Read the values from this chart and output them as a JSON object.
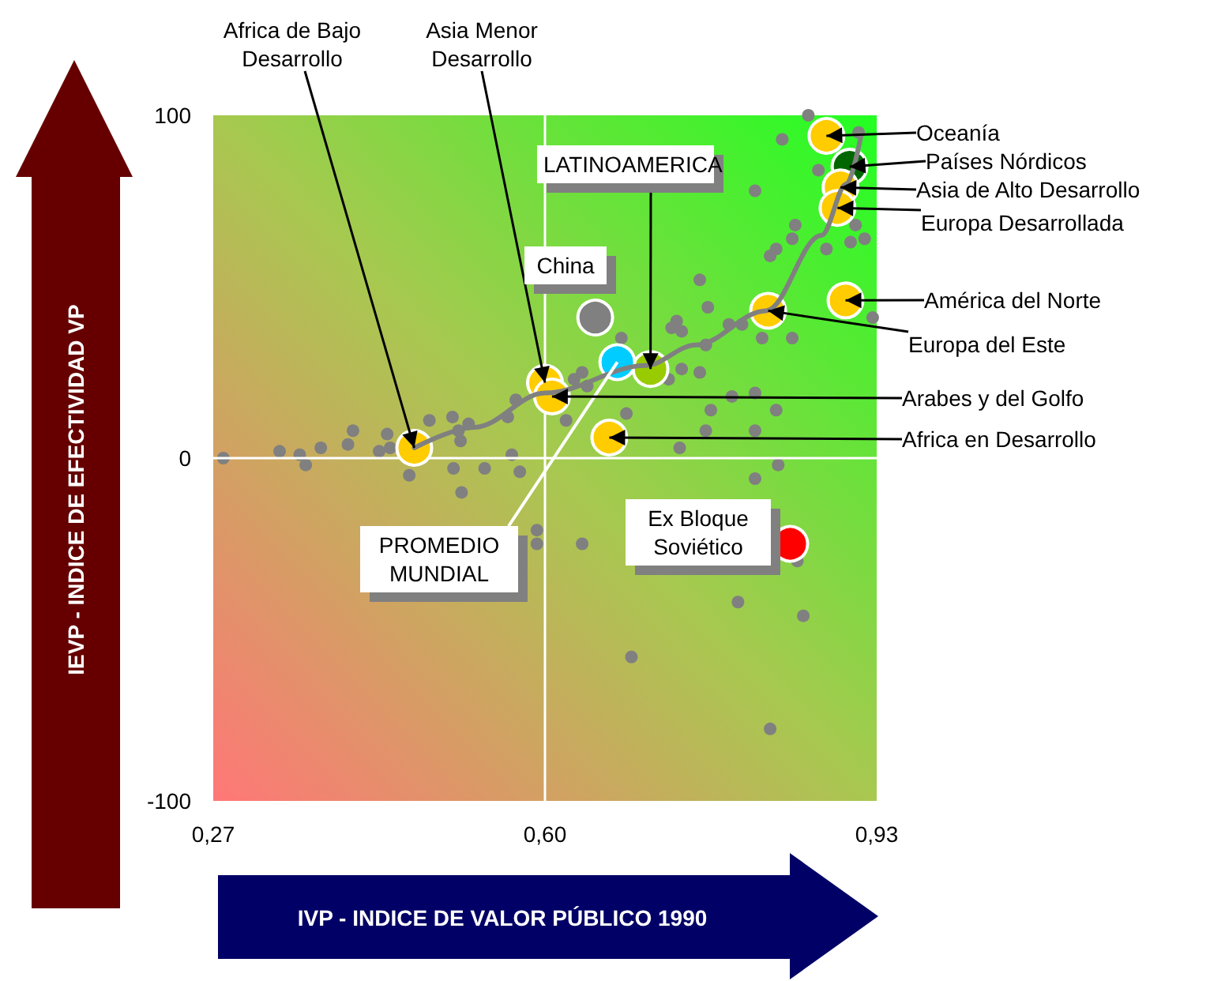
{
  "chart_data": {
    "type": "scatter",
    "xlabel": "IVP - INDICE DE VALOR PÚBLICO 1990",
    "ylabel": "IEVP - INDICE DE EFECTIVIDAD VP",
    "xlim": [
      0.27,
      0.93
    ],
    "ylim": [
      -100,
      100
    ],
    "xticks": [
      {
        "value": 0.27,
        "label": "0,27"
      },
      {
        "value": 0.6,
        "label": "0,60"
      },
      {
        "value": 0.93,
        "label": "0,93"
      }
    ],
    "yticks": [
      -100,
      0,
      100
    ],
    "marker": "circle",
    "ref_lines": [
      {
        "axis": "x",
        "value": 0.6,
        "color": "#ffffff"
      },
      {
        "axis": "y",
        "value": 0,
        "color": "#ffffff"
      }
    ],
    "series": [
      {
        "color": "#808080",
        "x": [
          0.862,
          0.836,
          0.912,
          0.872,
          0.809,
          0.849,
          0.83,
          0.846,
          0.824,
          0.88,
          0.909,
          0.904,
          0.918,
          0.926,
          0.754,
          0.762,
          0.783,
          0.796,
          0.726,
          0.731,
          0.736,
          0.676,
          0.816,
          0.846,
          0.76,
          0.736,
          0.754,
          0.723,
          0.629,
          0.637,
          0.642,
          0.571,
          0.786,
          0.809,
          0.83,
          0.765,
          0.681,
          0.76,
          0.809,
          0.734,
          0.621,
          0.563,
          0.524,
          0.508,
          0.485,
          0.514,
          0.516,
          0.443,
          0.404,
          0.409,
          0.377,
          0.336,
          0.435,
          0.446,
          0.28,
          0.356,
          0.362,
          0.465,
          0.509,
          0.54,
          0.567,
          0.575,
          0.517,
          0.832,
          0.809,
          0.592,
          0.592,
          0.637,
          0.792,
          0.857,
          0.686,
          0.824,
          0.851
        ],
        "values": [
          100,
          93,
          95,
          84,
          78,
          68,
          61,
          64,
          59,
          61,
          68,
          63,
          64,
          41,
          52,
          44,
          39,
          39,
          38,
          40,
          37,
          35,
          35,
          35,
          33,
          26,
          25,
          23,
          23,
          25,
          21,
          17,
          18,
          19,
          14,
          14,
          13,
          8,
          8,
          3,
          11,
          12,
          10,
          12,
          11,
          8,
          5,
          7,
          4,
          8,
          3,
          2,
          2,
          3,
          0,
          1,
          -2,
          -5,
          -3,
          -3,
          1,
          -4,
          -10,
          -2,
          -6,
          -21,
          -25,
          -25,
          -42,
          -46,
          -58,
          -79,
          -30
        ]
      },
      {
        "type": "line",
        "color": "#808080",
        "marker": "none",
        "x": [
          0.47,
          0.53,
          0.6,
          0.7,
          0.75,
          0.82,
          0.875,
          0.9,
          0.915
        ],
        "values": [
          3,
          9,
          19,
          27,
          33,
          43,
          65,
          80,
          95
        ]
      },
      {
        "colors": [
          "#ffcc00",
          "#ffcc00",
          "#99cc00",
          "#808080",
          "#00ccff",
          "#ff0000",
          "#ffcc00",
          "#006600",
          "#ffcc00",
          "#ffcc00",
          "#ffcc00",
          "#ffcc00",
          "#ffcc00",
          "#ffcc00"
        ],
        "x": [
          0.47,
          0.6,
          0.705,
          0.65,
          0.672,
          0.844,
          0.88,
          0.903,
          0.894,
          0.891,
          0.899,
          0.822,
          0.607,
          0.664
        ],
        "values": [
          3,
          22,
          26,
          41,
          28,
          -25,
          94,
          85,
          79,
          73,
          46,
          43,
          18,
          6
        ]
      }
    ],
    "annotations": [
      {
        "text": "Africa de Bajo Desarrollo",
        "x": 0.47,
        "y": 3
      },
      {
        "text": "Asia Menor Desarrollo",
        "x": 0.6,
        "y": 22
      },
      {
        "text": "LATINOAMERICA",
        "x": 0.705,
        "y": 26
      },
      "China",
      {
        "text": "PROMEDIO MUNDIAL",
        "x": 0.672,
        "y": 28
      },
      "Ex Bloque Soviético",
      {
        "text": "Oceanía",
        "x": 0.88,
        "y": 94
      },
      {
        "text": "Países Nórdicos",
        "x": 0.903,
        "y": 85
      },
      {
        "text": "Asia de Alto Desarrollo",
        "x": 0.894,
        "y": 79
      },
      {
        "text": "Europa Desarrollada",
        "x": 0.891,
        "y": 73
      },
      {
        "text": "América del Norte",
        "x": 0.899,
        "y": 46
      },
      {
        "text": "Europa del Este",
        "x": 0.822,
        "y": 43
      },
      {
        "text": "Arabes y del Golfo",
        "x": 0.607,
        "y": 18
      },
      {
        "text": "Africa en Desarrollo",
        "x": 0.664,
        "y": 6
      }
    ]
  }
}
